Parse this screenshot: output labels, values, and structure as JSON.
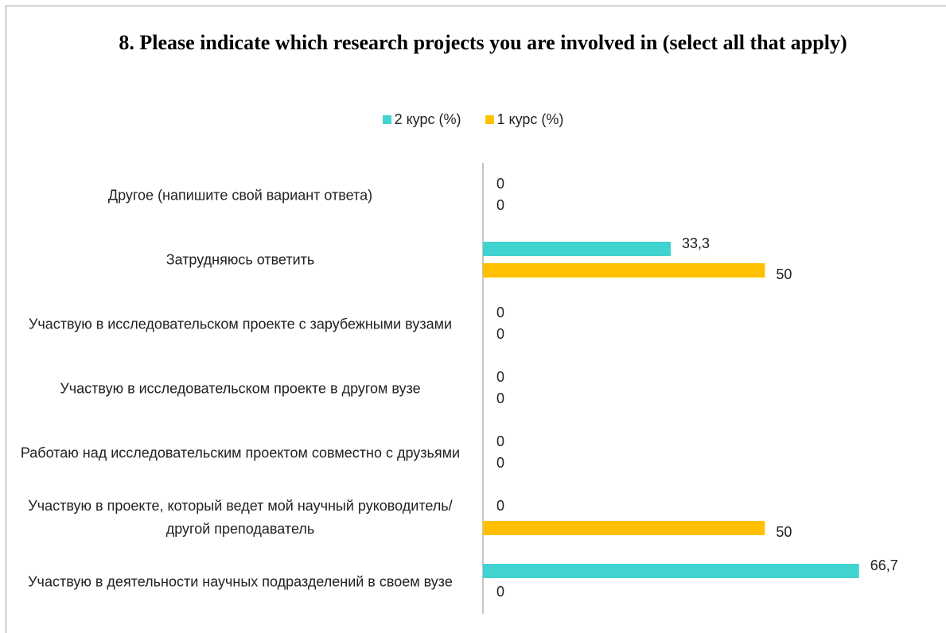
{
  "chart_data": {
    "type": "bar",
    "orientation": "horizontal",
    "title": "8. Please indicate which research projects you are involved in (select all that apply)",
    "categories": [
      "Другое (напишите свой вариант ответа)",
      "Затрудняюсь ответить",
      "Участвую в исследовательском проекте с зарубежными вузами",
      "Участвую в исследовательском проекте в другом вузе",
      "Работаю над исследовательским проектом совместно с друзьями",
      "Участвую в проекте, который ведет мой научный руководитель/другой  преподаватель",
      "Участвую в деятельности научных подразделений в своем вузе"
    ],
    "series": [
      {
        "name": "2 курс (%)",
        "color": "#41d3d0",
        "values": [
          0,
          33.3,
          0,
          0,
          0,
          0,
          66.7
        ],
        "value_labels": [
          "0",
          "33,3",
          "0",
          "0",
          "0",
          "0",
          "66,7"
        ]
      },
      {
        "name": "1 курс (%)",
        "color": "#ffc000",
        "values": [
          0,
          50,
          0,
          0,
          0,
          50,
          0
        ],
        "value_labels": [
          "0",
          "50",
          "0",
          "0",
          "0",
          "50",
          "0"
        ]
      }
    ],
    "xlim": [
      0,
      80
    ],
    "legend": "top"
  }
}
